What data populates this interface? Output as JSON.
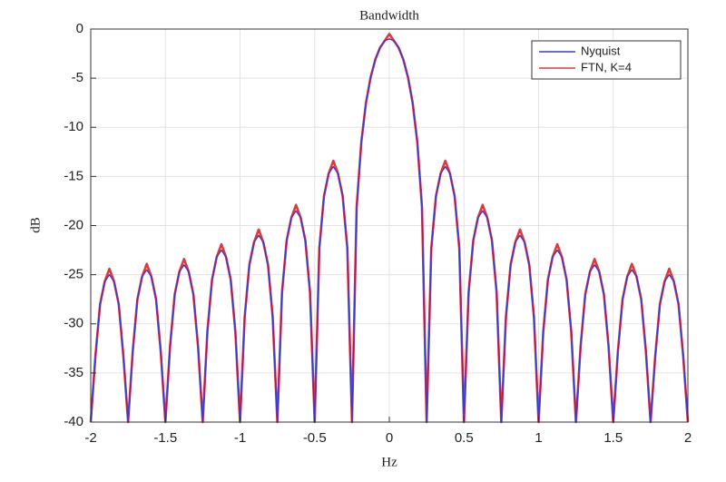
{
  "chart_data": {
    "type": "line",
    "title": "Bandwidth",
    "x_label": "Hz",
    "y_label": "dB",
    "x": [
      -2,
      -1.96875,
      -1.9375,
      -1.90625,
      -1.875,
      -1.84375,
      -1.8125,
      -1.78125,
      -1.75,
      -1.71875,
      -1.6875,
      -1.65625,
      -1.625,
      -1.59375,
      -1.5625,
      -1.53125,
      -1.5,
      -1.46875,
      -1.4375,
      -1.40625,
      -1.375,
      -1.34375,
      -1.3125,
      -1.28125,
      -1.25,
      -1.21875,
      -1.1875,
      -1.15625,
      -1.125,
      -1.09375,
      -1.0625,
      -1.03125,
      -1,
      -0.96875,
      -0.9375,
      -0.90625,
      -0.875,
      -0.84375,
      -0.8125,
      -0.78125,
      -0.75,
      -0.71875,
      -0.6875,
      -0.65625,
      -0.625,
      -0.59375,
      -0.5625,
      -0.53125,
      -0.5,
      -0.46875,
      -0.4375,
      -0.40625,
      -0.375,
      -0.34375,
      -0.3125,
      -0.28125,
      -0.25,
      -0.21875,
      -0.1875,
      -0.15625,
      -0.125,
      -0.09375,
      -0.0625,
      -0.03125,
      0,
      0.03125,
      0.0625,
      0.09375,
      0.125,
      0.15625,
      0.1875,
      0.21875,
      0.25,
      0.28125,
      0.3125,
      0.34375,
      0.375,
      0.40625,
      0.4375,
      0.46875,
      0.5,
      0.53125,
      0.5625,
      0.59375,
      0.625,
      0.65625,
      0.6875,
      0.71875,
      0.75,
      0.78125,
      0.8125,
      0.84375,
      0.875,
      0.90625,
      0.9375,
      0.96875,
      1,
      1.03125,
      1.0625,
      1.09375,
      1.125,
      1.15625,
      1.1875,
      1.21875,
      1.25,
      1.28125,
      1.3125,
      1.34375,
      1.375,
      1.40625,
      1.4375,
      1.46875,
      1.5,
      1.53125,
      1.5625,
      1.59375,
      1.625,
      1.65625,
      1.6875,
      1.71875,
      1.75,
      1.78125,
      1.8125,
      1.84375,
      1.875,
      1.90625,
      1.9375,
      1.96875,
      2
    ],
    "series": [
      {
        "name": "FTN, K=4",
        "color": "#e0383c",
        "values": [
          -40,
          -33.3,
          -28,
          -25.7,
          -24.4,
          -25.7,
          -28,
          -33.3,
          -40,
          -32.8,
          -27.5,
          -25.2,
          -23.9,
          -25.2,
          -27.5,
          -32.8,
          -40,
          -32.3,
          -27,
          -24.7,
          -23.4,
          -24.7,
          -27,
          -32.3,
          -40,
          -30.8,
          -25.5,
          -23.2,
          -21.9,
          -23.2,
          -25.5,
          -30.8,
          -40,
          -29.3,
          -24,
          -21.7,
          -20.4,
          -21.7,
          -24,
          -29.3,
          -40,
          -26.8,
          -21.5,
          -19.2,
          -17.9,
          -19.2,
          -21.5,
          -26.8,
          -40,
          -22.3,
          -17,
          -14.7,
          -13.4,
          -14.7,
          -17,
          -22.3,
          -40,
          -18.1,
          -11.5,
          -7.5,
          -4.9,
          -3.1,
          -1.9,
          -1.2,
          -0.5,
          -1.2,
          -1.9,
          -3.1,
          -4.9,
          -7.5,
          -11.5,
          -18.1,
          -40,
          -22.3,
          -17,
          -14.7,
          -13.4,
          -14.7,
          -17,
          -22.3,
          -40,
          -26.8,
          -21.5,
          -19.2,
          -17.9,
          -19.2,
          -21.5,
          -26.8,
          -40,
          -29.3,
          -24,
          -21.7,
          -20.4,
          -21.7,
          -24,
          -29.3,
          -40,
          -30.8,
          -25.5,
          -23.2,
          -21.9,
          -23.2,
          -25.5,
          -30.8,
          -40,
          -32.3,
          -27,
          -24.7,
          -23.4,
          -24.7,
          -27,
          -32.3,
          -40,
          -32.8,
          -27.5,
          -25.2,
          -23.9,
          -25.2,
          -27.5,
          -32.8,
          -40,
          -33.3,
          -28,
          -25.7,
          -24.4,
          -25.7,
          -28,
          -33.3,
          -40
        ]
      },
      {
        "name": "Nyquist",
        "color": "#3a3ad0",
        "values": [
          -40,
          -33.3,
          -28,
          -25.7,
          -25,
          -25.7,
          -28,
          -33.3,
          -40,
          -32.8,
          -27.5,
          -25.2,
          -24.5,
          -25.2,
          -27.5,
          -32.8,
          -40,
          -32.3,
          -27,
          -24.7,
          -24,
          -24.7,
          -27,
          -32.3,
          -40,
          -30.8,
          -25.5,
          -23.2,
          -22.5,
          -23.2,
          -25.5,
          -30.8,
          -40,
          -29.3,
          -24,
          -21.7,
          -21,
          -21.7,
          -24,
          -29.3,
          -40,
          -26.8,
          -21.5,
          -19.2,
          -18.5,
          -19.2,
          -21.5,
          -26.8,
          -40,
          -22.3,
          -17,
          -14.7,
          -14,
          -14.7,
          -17,
          -22.3,
          -40,
          -18.1,
          -11.5,
          -7.5,
          -4.9,
          -3.1,
          -1.9,
          -1.2,
          -1,
          -1.2,
          -1.9,
          -3.1,
          -4.9,
          -7.5,
          -11.5,
          -18.1,
          -40,
          -22.3,
          -17,
          -14.7,
          -14,
          -14.7,
          -17,
          -22.3,
          -40,
          -26.8,
          -21.5,
          -19.2,
          -18.5,
          -19.2,
          -21.5,
          -26.8,
          -40,
          -29.3,
          -24,
          -21.7,
          -21,
          -21.7,
          -24,
          -29.3,
          -40,
          -30.8,
          -25.5,
          -23.2,
          -22.5,
          -23.2,
          -25.5,
          -30.8,
          -40,
          -32.3,
          -27,
          -24.7,
          -24,
          -24.7,
          -27,
          -32.3,
          -40,
          -32.8,
          -27.5,
          -25.2,
          -24.5,
          -25.2,
          -27.5,
          -32.8,
          -40,
          -33.3,
          -28,
          -25.7,
          -25,
          -25.7,
          -28,
          -33.3,
          -40
        ]
      }
    ],
    "legend_order": [
      1,
      0
    ],
    "xlim": [
      -2,
      2
    ],
    "xticks": [
      -2,
      -1.5,
      -1,
      -0.5,
      0,
      0.5,
      1,
      1.5,
      2
    ],
    "ylim": [
      -40,
      0
    ],
    "yticks": [
      0,
      -5,
      -10,
      -15,
      -20,
      -25,
      -30,
      -35,
      -40
    ],
    "grid": true,
    "legend_position": "upper-right"
  }
}
